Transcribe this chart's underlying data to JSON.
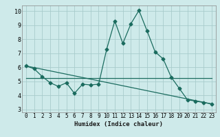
{
  "xlabel": "Humidex (Indice chaleur)",
  "xlim": [
    -0.5,
    23.5
  ],
  "ylim": [
    2.8,
    10.4
  ],
  "xticks": [
    0,
    1,
    2,
    3,
    4,
    5,
    6,
    7,
    8,
    9,
    10,
    11,
    12,
    13,
    14,
    15,
    16,
    17,
    18,
    19,
    20,
    21,
    22,
    23
  ],
  "yticks": [
    3,
    4,
    5,
    6,
    7,
    8,
    9,
    10
  ],
  "bg_color": "#ceeaea",
  "line_color": "#1a6b5e",
  "grid_color": "#a8cccc",
  "line1_x": [
    0,
    1,
    2,
    3,
    4,
    5,
    6,
    7,
    8,
    9,
    10,
    11,
    12,
    13,
    14,
    15,
    16,
    17,
    18,
    19,
    20,
    21,
    22,
    23
  ],
  "line1_y": [
    6.1,
    5.9,
    5.35,
    4.9,
    4.65,
    4.9,
    4.15,
    4.8,
    4.75,
    4.8,
    7.3,
    9.3,
    7.7,
    9.1,
    10.05,
    8.6,
    7.1,
    6.6,
    5.3,
    4.5,
    3.7,
    3.6,
    3.5,
    3.4
  ],
  "line2_x": [
    0,
    20,
    23
  ],
  "line2_y": [
    5.22,
    5.22,
    5.22
  ],
  "line3_x": [
    0,
    23
  ],
  "line3_y": [
    6.1,
    3.4
  ],
  "markersize": 2.5,
  "linewidth": 0.9
}
